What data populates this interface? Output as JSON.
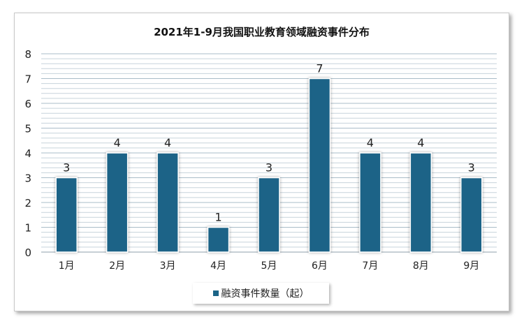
{
  "chart_data": {
    "type": "bar",
    "title": "2021年1-9月我国职业教育领域融资事件分布",
    "categories": [
      "1月",
      "2月",
      "3月",
      "4月",
      "5月",
      "6月",
      "7月",
      "8月",
      "9月"
    ],
    "series": [
      {
        "name": "融资事件数量（起）",
        "values": [
          3,
          4,
          4,
          1,
          3,
          7,
          4,
          4,
          3
        ]
      }
    ],
    "ylim": [
      0,
      8
    ],
    "yticks": [
      0,
      1,
      2,
      3,
      4,
      5,
      6,
      7,
      8
    ],
    "xlabel": "",
    "ylabel": "",
    "grid": true,
    "legend_position": "bottom",
    "bar_color": "#1b6487"
  }
}
